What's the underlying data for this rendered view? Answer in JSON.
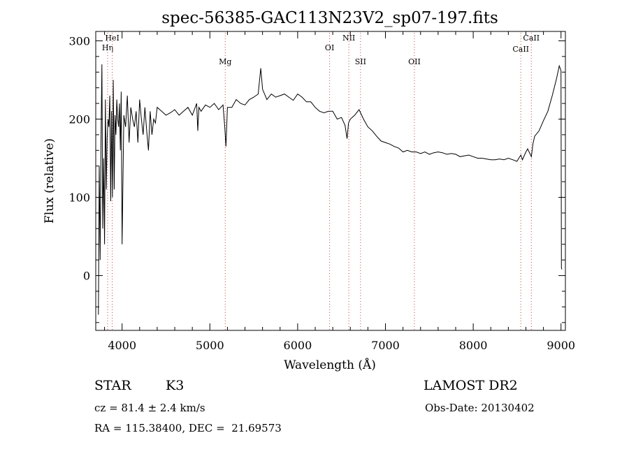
{
  "chart_data": {
    "type": "line",
    "title": "spec-56385-GAC113N23V2_sp07-197.fits",
    "xlabel": "Wavelength (Å)",
    "ylabel": "Flux (relative)",
    "xlim": [
      3700,
      9050
    ],
    "ylim": [
      -70,
      312
    ],
    "xticks": [
      4000,
      5000,
      6000,
      7000,
      8000,
      9000
    ],
    "yticks": [
      0,
      100,
      200,
      300
    ],
    "x_minor_step": 200,
    "y_minor_step": 20,
    "grid": false,
    "series": [
      {
        "x": [
          3730,
          3740,
          3750,
          3760,
          3770,
          3780,
          3790,
          3800,
          3810,
          3820,
          3830,
          3840,
          3850,
          3860,
          3870,
          3880,
          3890,
          3900,
          3910,
          3920,
          3930,
          3940,
          3950,
          3960,
          3970,
          3980,
          3990,
          4000,
          4020,
          4040,
          4060,
          4080,
          4100,
          4120,
          4140,
          4160,
          4180,
          4200,
          4220,
          4240,
          4260,
          4280,
          4300,
          4320,
          4340,
          4360,
          4380,
          4400,
          4450,
          4500,
          4550,
          4600,
          4650,
          4700,
          4750,
          4800,
          4850,
          4862,
          4875,
          4900,
          4950,
          5000,
          5050,
          5100,
          5150,
          5170,
          5183,
          5200,
          5250,
          5300,
          5350,
          5400,
          5450,
          5500,
          5550,
          5580,
          5600,
          5650,
          5700,
          5750,
          5800,
          5850,
          5900,
          5950,
          6000,
          6050,
          6100,
          6150,
          6200,
          6250,
          6300,
          6350,
          6400,
          6450,
          6500,
          6540,
          6563,
          6580,
          6600,
          6650,
          6700,
          6750,
          6800,
          6850,
          6900,
          6950,
          7000,
          7050,
          7100,
          7150,
          7200,
          7250,
          7300,
          7350,
          7400,
          7450,
          7500,
          7550,
          7600,
          7650,
          7700,
          7750,
          7800,
          7850,
          7900,
          7950,
          8000,
          8050,
          8100,
          8150,
          8200,
          8250,
          8300,
          8350,
          8400,
          8450,
          8498,
          8520,
          8542,
          8560,
          8600,
          8620,
          8662,
          8680,
          8700,
          8750,
          8800,
          8850,
          8900,
          8950,
          8980,
          9000,
          9005,
          9010
        ],
        "y": [
          -50,
          140,
          20,
          170,
          270,
          60,
          150,
          40,
          225,
          110,
          175,
          200,
          190,
          230,
          95,
          210,
          100,
          250,
          110,
          205,
          180,
          225,
          200,
          190,
          220,
          160,
          235,
          40,
          205,
          190,
          230,
          170,
          215,
          200,
          190,
          210,
          170,
          225,
          200,
          180,
          215,
          185,
          160,
          210,
          180,
          200,
          195,
          215,
          210,
          205,
          208,
          212,
          205,
          210,
          215,
          205,
          220,
          185,
          215,
          210,
          218,
          215,
          220,
          212,
          218,
          190,
          165,
          215,
          215,
          225,
          220,
          218,
          225,
          228,
          232,
          265,
          238,
          225,
          232,
          228,
          230,
          232,
          228,
          224,
          232,
          228,
          222,
          222,
          215,
          210,
          208,
          210,
          210,
          200,
          202,
          192,
          175,
          195,
          200,
          205,
          212,
          200,
          190,
          185,
          178,
          172,
          170,
          168,
          165,
          163,
          158,
          160,
          158,
          158,
          156,
          158,
          155,
          157,
          158,
          157,
          155,
          156,
          155,
          152,
          153,
          154,
          152,
          150,
          150,
          149,
          148,
          148,
          149,
          148,
          150,
          148,
          146,
          150,
          154,
          148,
          158,
          162,
          152,
          168,
          178,
          185,
          198,
          210,
          230,
          252,
          268,
          262,
          10,
          8
        ]
      }
    ],
    "spectral_lines": [
      {
        "label": "Hη",
        "x": 3835
      },
      {
        "label": "HeI",
        "x": 3888
      },
      {
        "label": "Mg",
        "x": 5175
      },
      {
        "label": "OI",
        "x": 6364
      },
      {
        "label": "NII",
        "x": 6583
      },
      {
        "label": "SII",
        "x": 6716
      },
      {
        "label": "OII",
        "x": 7330
      },
      {
        "label": "CaII",
        "x": 8542
      },
      {
        "label": "CaII",
        "x": 8662
      }
    ]
  },
  "info": {
    "class": "STAR",
    "subclass": "K3",
    "survey": "LAMOST DR2",
    "cz": "cz = 81.4 ± 2.4 km/s",
    "obs_date": "Obs-Date: 20130402",
    "coords": "RA = 115.38400, DEC =  21.69573"
  }
}
